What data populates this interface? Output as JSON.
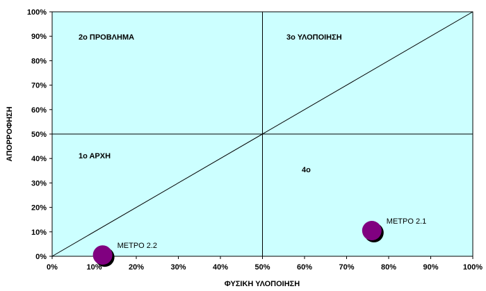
{
  "chart_data": {
    "type": "scatter",
    "xlabel": "ΦΥΣΙΚΗ ΥΛΟΠΟΙΗΣΗ",
    "ylabel": "ΑΠΟΡΡΟΦΗΣΗ",
    "xlim": [
      0,
      100
    ],
    "ylim": [
      0,
      100
    ],
    "x_ticks": [
      "0%",
      "10%",
      "20%",
      "30%",
      "40%",
      "50%",
      "60%",
      "70%",
      "80%",
      "90%",
      "100%"
    ],
    "y_ticks": [
      "0%",
      "10%",
      "20%",
      "30%",
      "40%",
      "50%",
      "60%",
      "70%",
      "80%",
      "90%",
      "100%"
    ],
    "grid": false,
    "plot_background": "#ccffff",
    "reference_lines": [
      {
        "kind": "vertical",
        "x": 50
      },
      {
        "kind": "horizontal",
        "y": 50
      },
      {
        "kind": "diagonal",
        "from": [
          0,
          0
        ],
        "to": [
          100,
          100
        ]
      }
    ],
    "quadrant_labels": [
      "2ο ΠΡΟΒΛΗΜΑ",
      "3ο ΥΛΟΠΟΙΗΣΗ",
      "1ο ΑΡΧΗ",
      "4ο"
    ],
    "points": [
      {
        "label": "ΜΕΤΡΟ 2.1",
        "x": 76,
        "y": 10.5
      },
      {
        "label": "ΜΕΤΡΟ 2.2",
        "x": 12,
        "y": 0.5
      }
    ],
    "marker_color": "#800080",
    "marker_shadow_color": "#000000"
  }
}
